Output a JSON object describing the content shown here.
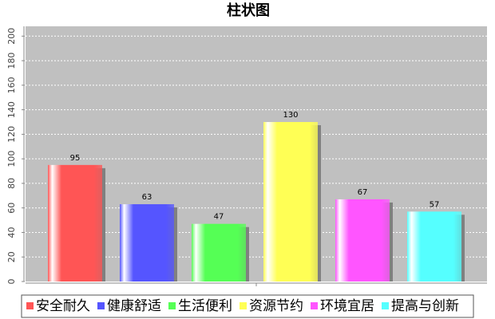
{
  "chart_data": {
    "type": "bar",
    "title": "柱状图",
    "categories": [
      "安全耐久",
      "健康舒适",
      "生活便利",
      "资源节约",
      "环境宜居",
      "提高与创新"
    ],
    "values": [
      95,
      63,
      47,
      130,
      67,
      57
    ],
    "colors": [
      "#ff5555",
      "#5555ff",
      "#55ff55",
      "#ffff55",
      "#ff55ff",
      "#55ffff"
    ],
    "ylim": [
      0,
      208
    ],
    "yticks": [
      0,
      20,
      40,
      60,
      80,
      100,
      120,
      140,
      160,
      180,
      200
    ],
    "grid": true
  }
}
